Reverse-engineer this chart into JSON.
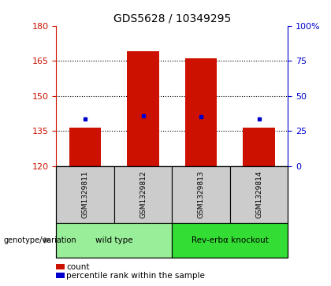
{
  "title": "GDS5628 / 10349295",
  "samples": [
    "GSM1329811",
    "GSM1329812",
    "GSM1329813",
    "GSM1329814"
  ],
  "bar_values": [
    136.5,
    169.0,
    166.0,
    136.5
  ],
  "percentile_values": [
    140.0,
    141.5,
    141.0,
    140.0
  ],
  "ylim_left": [
    120,
    180
  ],
  "ylim_right": [
    0,
    100
  ],
  "yticks_left": [
    120,
    135,
    150,
    165,
    180
  ],
  "yticks_right": [
    0,
    25,
    50,
    75,
    100
  ],
  "ytick_right_labels": [
    "0",
    "25",
    "50",
    "75",
    "100%"
  ],
  "bar_color": "#cc1100",
  "dot_color": "#0000cc",
  "bar_bottom": 120,
  "groups": [
    {
      "label": "wild type",
      "samples": [
        0,
        1
      ],
      "color": "#99ee99"
    },
    {
      "label": "Rev-erbα knockout",
      "samples": [
        2,
        3
      ],
      "color": "#33dd33"
    }
  ],
  "genotype_label": "genotype/variation",
  "legend_items": [
    {
      "color": "#cc1100",
      "label": "  count"
    },
    {
      "color": "#0000cc",
      "label": "  percentile rank within the sample"
    }
  ],
  "tick_color_left": "#cc1100",
  "tick_color_right": "#0000cc",
  "sample_box_color": "#cccccc",
  "bar_width": 0.55,
  "grid_lines": [
    135,
    150,
    165
  ],
  "n_samples": 4
}
